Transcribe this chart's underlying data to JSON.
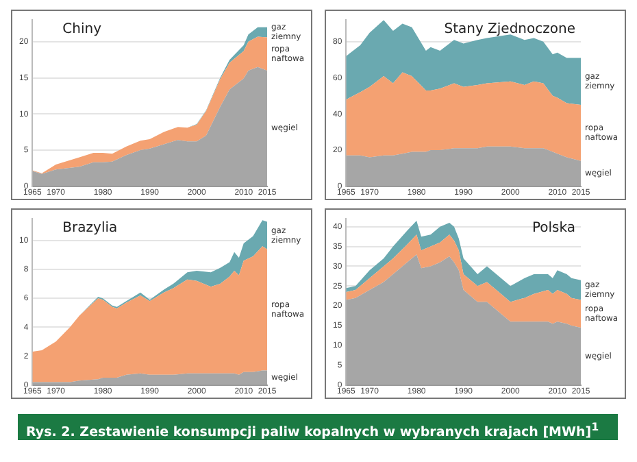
{
  "chart_data": [
    {
      "type": "area",
      "title": "Chiny",
      "stacked": true,
      "grid": "y",
      "legend": false,
      "x": [
        1965,
        1967,
        1970,
        1975,
        1978,
        1980,
        1982,
        1985,
        1988,
        1990,
        1993,
        1996,
        1998,
        2000,
        2002,
        2005,
        2007,
        2010,
        2011,
        2013,
        2015
      ],
      "xlim": [
        1965,
        2015
      ],
      "xticks": [
        1965,
        1970,
        1980,
        1990,
        2000,
        2010,
        2015
      ],
      "ylim": [
        0,
        23
      ],
      "yticks": [
        0,
        5,
        10,
        15,
        20
      ],
      "series": [
        {
          "name": "węgiel",
          "color": "#a6a6a6",
          "values": [
            2.1,
            1.7,
            2.3,
            2.7,
            3.3,
            3.3,
            3.4,
            4.3,
            5.0,
            5.2,
            5.8,
            6.4,
            6.2,
            6.2,
            7.0,
            11,
            13.4,
            14.9,
            16,
            16.5,
            16.0
          ]
        },
        {
          "name": "ropa naftowa",
          "color": "#f4a172",
          "values": [
            0.1,
            0.1,
            0.7,
            1.3,
            1.3,
            1.3,
            1.1,
            1.2,
            1.3,
            1.3,
            1.7,
            1.8,
            1.9,
            2.3,
            3.4,
            3.8,
            3.7,
            3.8,
            4.0,
            4.2,
            4.6
          ]
        },
        {
          "name": "gaz ziemny",
          "color": "#6aa9b0",
          "values": [
            0,
            0,
            0,
            0,
            0,
            0,
            0,
            0,
            0,
            0,
            0,
            0,
            0,
            0.1,
            0.1,
            0.2,
            0.4,
            0.8,
            1.0,
            1.3,
            1.4
          ]
        }
      ]
    },
    {
      "type": "area",
      "title": "Stany Zjednoczone",
      "stacked": true,
      "grid": "y",
      "legend": false,
      "x": [
        1965,
        1968,
        1970,
        1973,
        1975,
        1977,
        1979,
        1982,
        1983,
        1985,
        1988,
        1990,
        1993,
        1995,
        2000,
        2003,
        2005,
        2007,
        2009,
        2010,
        2012,
        2015
      ],
      "xlim": [
        1965,
        2015
      ],
      "xticks": [
        1965,
        1970,
        1980,
        1990,
        2000,
        2010,
        2015
      ],
      "ylim": [
        0,
        92
      ],
      "yticks": [
        0,
        20,
        40,
        60,
        80
      ],
      "series": [
        {
          "name": "węgiel",
          "color": "#a6a6a6",
          "values": [
            17,
            17,
            16,
            17,
            17,
            18,
            19,
            19,
            20,
            20,
            21,
            21,
            21,
            22,
            22,
            21,
            21,
            21,
            19,
            18,
            16,
            14
          ]
        },
        {
          "name": "ropa naftowa",
          "color": "#f4a172",
          "values": [
            31,
            35,
            39,
            44,
            40,
            45,
            42,
            34,
            33,
            34,
            36,
            34,
            35,
            35,
            36,
            35,
            37,
            36,
            31,
            31,
            30,
            31
          ]
        },
        {
          "name": "gaz ziemny",
          "color": "#6aa9b0",
          "values": [
            24,
            26,
            30,
            31,
            29,
            27,
            27,
            22,
            24,
            21,
            24,
            24,
            25,
            25,
            26,
            25,
            24,
            23,
            23,
            25,
            25,
            26
          ]
        }
      ]
    },
    {
      "type": "area",
      "title": "Brazylia",
      "stacked": true,
      "grid": "y",
      "legend": false,
      "x": [
        1965,
        1967,
        1970,
        1973,
        1975,
        1979,
        1980,
        1982,
        1983,
        1985,
        1988,
        1990,
        1993,
        1995,
        1998,
        2000,
        2003,
        2005,
        2007,
        2008,
        2009,
        2010,
        2012,
        2014,
        2015
      ],
      "xlim": [
        1965,
        2015
      ],
      "xticks": [
        1965,
        1970,
        1980,
        1990,
        2000,
        2010,
        2015
      ],
      "ylim": [
        0,
        11.5
      ],
      "yticks": [
        0,
        2,
        4,
        6,
        8,
        10
      ],
      "series": [
        {
          "name": "węgiel",
          "color": "#a6a6a6",
          "values": [
            0.2,
            0.2,
            0.2,
            0.2,
            0.3,
            0.4,
            0.5,
            0.5,
            0.5,
            0.7,
            0.8,
            0.7,
            0.7,
            0.7,
            0.8,
            0.8,
            0.8,
            0.8,
            0.8,
            0.8,
            0.7,
            0.9,
            0.9,
            1.0,
            1.0
          ]
        },
        {
          "name": "ropa naftowa",
          "color": "#f4a172",
          "values": [
            2.1,
            2.2,
            2.8,
            3.8,
            4.5,
            5.6,
            5.4,
            4.9,
            4.8,
            5.0,
            5.4,
            5.1,
            5.7,
            6.0,
            6.5,
            6.4,
            6.0,
            6.2,
            6.7,
            7.1,
            6.9,
            7.7,
            8.0,
            8.6,
            8.4
          ]
        },
        {
          "name": "gaz ziemny",
          "color": "#6aa9b0",
          "values": [
            0,
            0,
            0,
            0,
            0,
            0.1,
            0.1,
            0.1,
            0.1,
            0.1,
            0.2,
            0.1,
            0.2,
            0.3,
            0.5,
            0.7,
            1.0,
            1.1,
            1.0,
            1.3,
            1.2,
            1.2,
            1.4,
            1.8,
            1.9
          ]
        }
      ]
    },
    {
      "type": "area",
      "title": "Polska",
      "stacked": true,
      "grid": "y",
      "legend": false,
      "x": [
        1965,
        1967,
        1970,
        1973,
        1975,
        1978,
        1980,
        1981,
        1983,
        1985,
        1987,
        1988,
        1989,
        1990,
        1993,
        1995,
        1998,
        2000,
        2003,
        2005,
        2008,
        2009,
        2010,
        2012,
        2013,
        2015
      ],
      "xlim": [
        1965,
        2015
      ],
      "xticks": [
        1965,
        1970,
        1980,
        1990,
        2000,
        2010,
        2015
      ],
      "ylim": [
        0,
        42
      ],
      "yticks": [
        0,
        5,
        10,
        15,
        20,
        25,
        30,
        35,
        40
      ],
      "series": [
        {
          "name": "węgiel",
          "color": "#a6a6a6",
          "values": [
            21.5,
            22,
            24,
            26,
            28,
            31,
            33,
            29.5,
            30,
            31,
            32.5,
            31,
            29,
            24,
            21,
            21,
            18,
            16,
            16,
            16,
            16,
            15.5,
            16,
            15.5,
            15,
            14.5
          ]
        },
        {
          "name": "ropa naftowa",
          "color": "#f4a172",
          "values": [
            2,
            2,
            3,
            4,
            4,
            4.5,
            5,
            4.5,
            5,
            5,
            5.5,
            5.5,
            5,
            4,
            4,
            5,
            5,
            5,
            6,
            7,
            8,
            7.5,
            8,
            7.5,
            7,
            7
          ]
        },
        {
          "name": "gaz ziemny",
          "color": "#6aa9b0",
          "values": [
            1,
            1,
            2,
            2,
            3,
            3.5,
            3.5,
            3.5,
            3,
            4,
            3,
            3.5,
            3,
            4,
            3,
            4,
            4,
            4,
            5,
            5,
            4,
            4,
            5,
            5,
            5,
            5
          ]
        }
      ],
      "annotations": [
        "Rys. 2. Zestawienie konsumpcji paliw kopalnych w wybranych krajach [MWh]$^{1}$"
      ]
    }
  ]
}
